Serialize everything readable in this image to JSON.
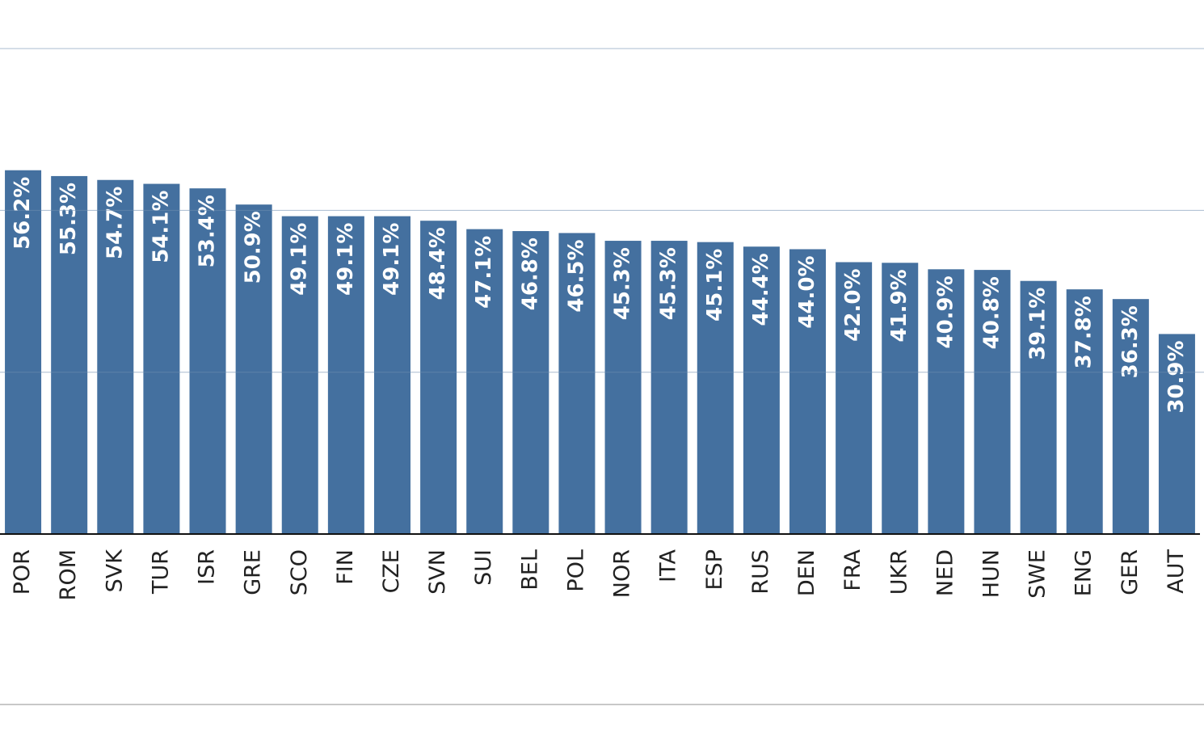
{
  "chart_data": {
    "type": "bar",
    "categories": [
      "POR",
      "ROM",
      "SVK",
      "TUR",
      "ISR",
      "GRE",
      "SCO",
      "FIN",
      "CZE",
      "SVN",
      "SUI",
      "BEL",
      "POL",
      "NOR",
      "ITA",
      "ESP",
      "RUS",
      "DEN",
      "FRA",
      "UKR",
      "NED",
      "HUN",
      "SWE",
      "ENG",
      "GER",
      "AUT"
    ],
    "values": [
      56.2,
      55.3,
      54.7,
      54.1,
      53.4,
      50.9,
      49.1,
      49.1,
      49.1,
      48.4,
      47.1,
      46.8,
      46.5,
      45.3,
      45.3,
      45.1,
      44.4,
      44.0,
      42.0,
      41.9,
      40.9,
      40.8,
      39.1,
      37.8,
      36.3,
      30.9
    ],
    "value_labels": [
      "56.2%",
      "55.3%",
      "54.7%",
      "54.1%",
      "53.4%",
      "50.9%",
      "49.1%",
      "49.1%",
      "49.1%",
      "48.4%",
      "47.1%",
      "46.8%",
      "46.5%",
      "45.3%",
      "45.3%",
      "45.1%",
      "44.4%",
      "44.0%",
      "42.0%",
      "41.9%",
      "40.9%",
      "40.8%",
      "39.1%",
      "37.8%",
      "36.3%",
      "30.9%"
    ],
    "color": "#44709f",
    "ylim": [
      0,
      82.5
    ],
    "yticks": [
      25,
      50,
      75
    ],
    "grid": true
  }
}
